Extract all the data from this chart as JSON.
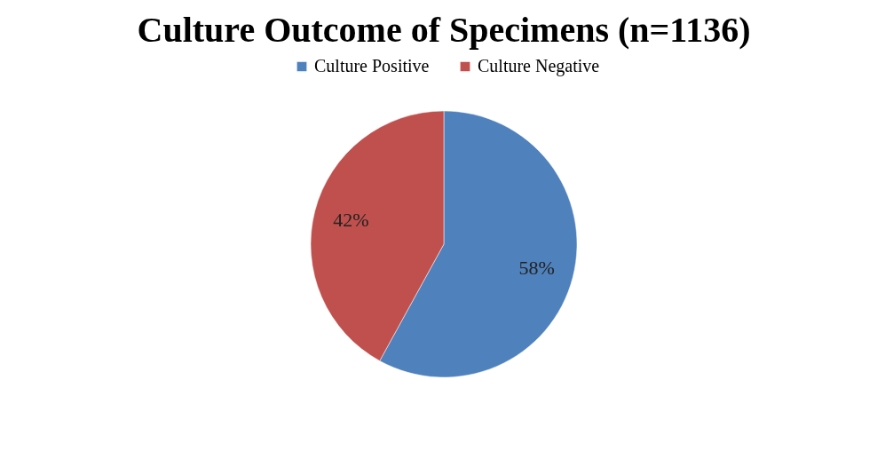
{
  "chart_data": {
    "type": "pie",
    "title": "Culture Outcome of Specimens (n=1136)",
    "categories": [
      "Culture Positive",
      "Culture Negative"
    ],
    "values": [
      58,
      42
    ],
    "colors": [
      "#4f81bd",
      "#c0504d"
    ],
    "value_labels": [
      "58%",
      "42%"
    ],
    "legend": "top"
  }
}
